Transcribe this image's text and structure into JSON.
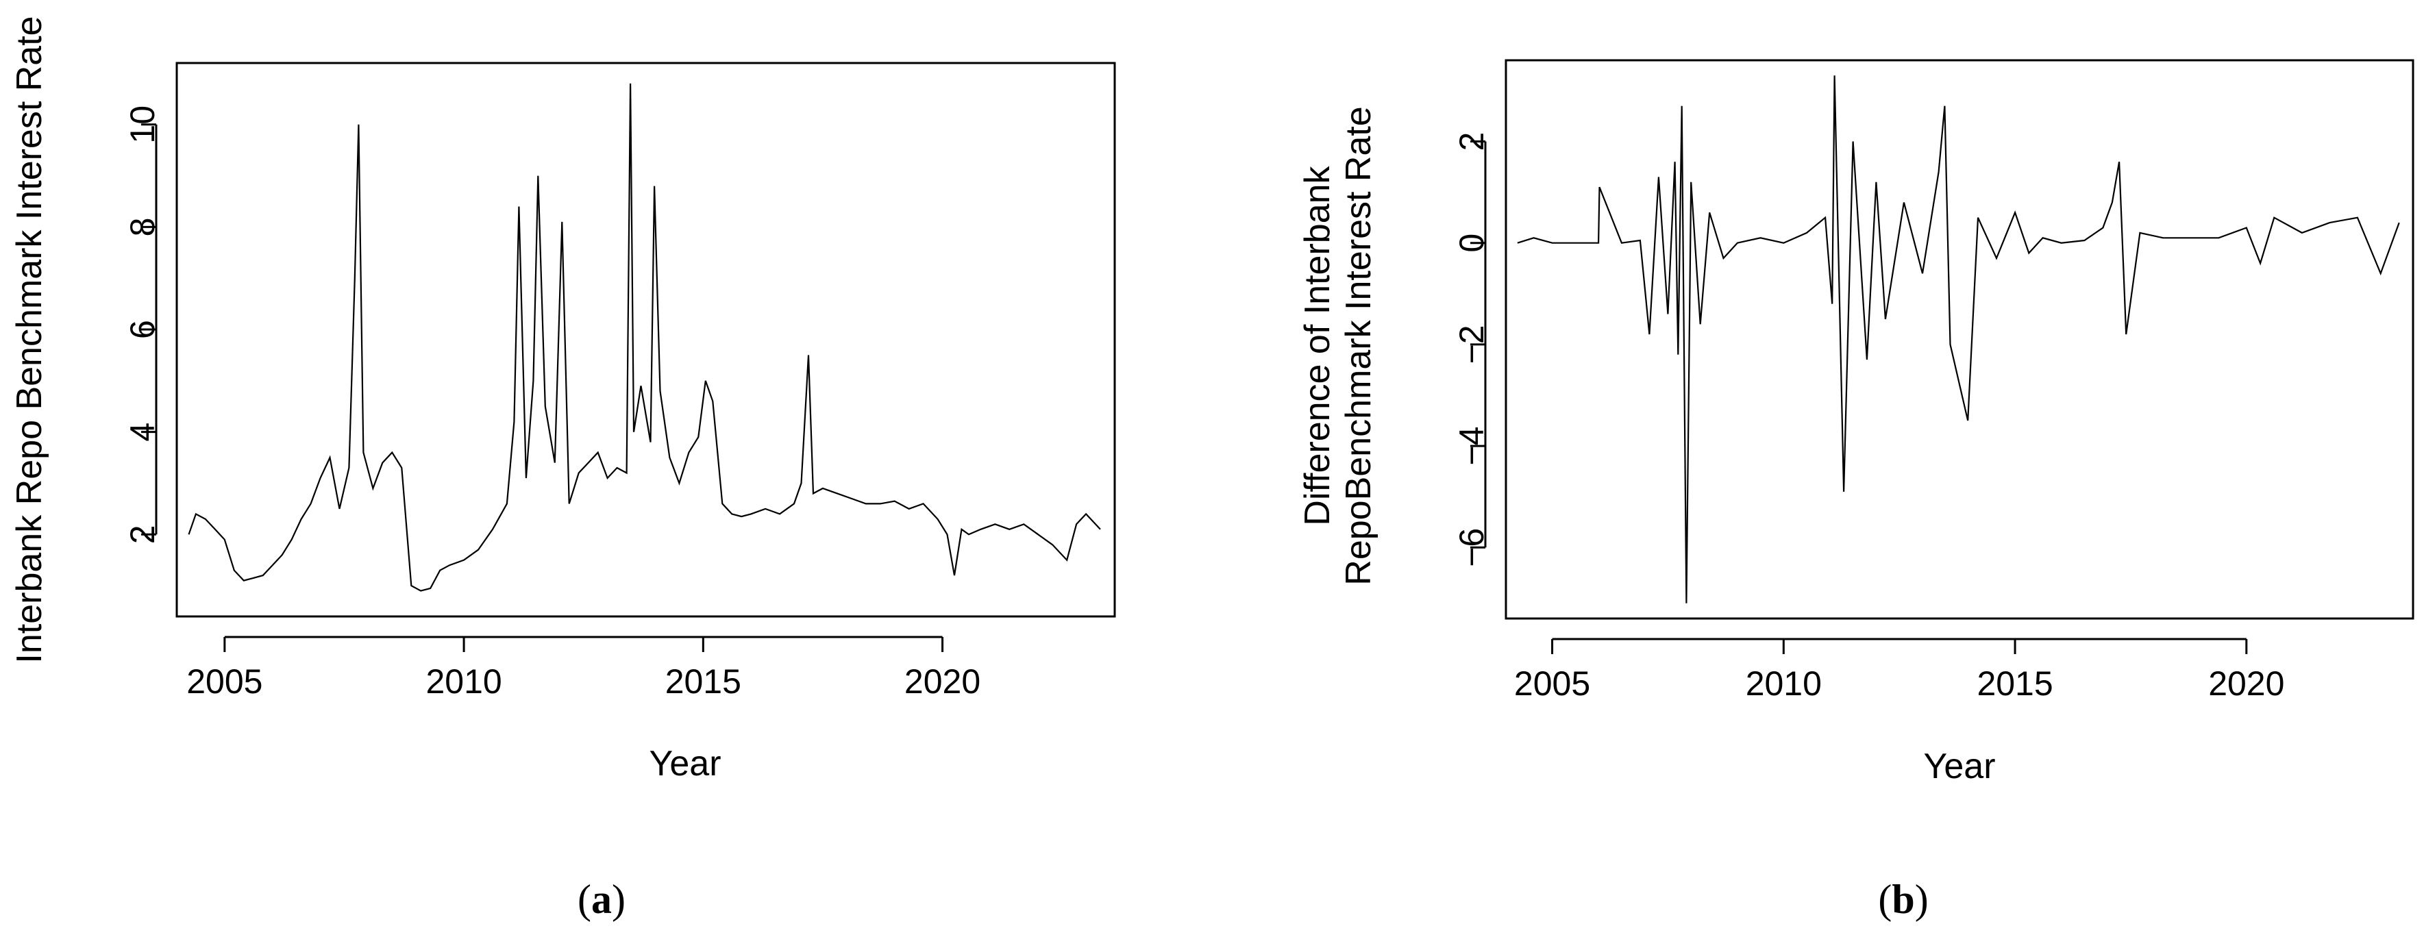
{
  "chart_data": [
    {
      "type": "line",
      "panel_label": "a",
      "xlabel": "Year",
      "ylabel": "Interbank Repo Benchmark Interest Rate",
      "xlim": [
        2004.0,
        2023.6
      ],
      "ylim": [
        0.4,
        11.2
      ],
      "x_ticks": [
        2005,
        2010,
        2015,
        2020
      ],
      "x_tick_labels": [
        "2005",
        "2010",
        "2015",
        "2020"
      ],
      "y_ticks": [
        2,
        4,
        6,
        8,
        10
      ],
      "y_tick_labels": [
        "2",
        "4",
        "6",
        "8",
        "10"
      ],
      "series": [
        {
          "x": [
            2004.25,
            2004.4,
            2004.6,
            2004.8,
            2005.0,
            2005.2,
            2005.4,
            2005.6,
            2005.8,
            2006.0,
            2006.2,
            2006.4,
            2006.6,
            2006.8,
            2007.0,
            2007.2,
            2007.4,
            2007.6,
            2007.72,
            2007.8,
            2007.9,
            2008.1,
            2008.3,
            2008.5,
            2008.7,
            2008.9,
            2009.1,
            2009.3,
            2009.5,
            2009.7,
            2010.0,
            2010.3,
            2010.6,
            2010.9,
            2011.05,
            2011.15,
            2011.3,
            2011.45,
            2011.55,
            2011.7,
            2011.9,
            2012.05,
            2012.2,
            2012.4,
            2012.6,
            2012.8,
            2013.0,
            2013.2,
            2013.4,
            2013.48,
            2013.55,
            2013.7,
            2013.9,
            2013.98,
            2014.1,
            2014.3,
            2014.5,
            2014.7,
            2014.9,
            2015.05,
            2015.2,
            2015.4,
            2015.6,
            2015.8,
            2016.0,
            2016.3,
            2016.6,
            2016.9,
            2017.05,
            2017.2,
            2017.3,
            2017.5,
            2017.8,
            2018.1,
            2018.4,
            2018.7,
            2019.0,
            2019.3,
            2019.6,
            2019.9,
            2020.1,
            2020.25,
            2020.4,
            2020.55,
            2020.8,
            2021.1,
            2021.4,
            2021.7,
            2022.0,
            2022.3,
            2022.6,
            2022.8,
            2023.0,
            2023.3
          ],
          "values": [
            2.0,
            2.4,
            2.3,
            2.1,
            1.9,
            1.3,
            1.1,
            1.15,
            1.2,
            1.4,
            1.6,
            1.9,
            2.3,
            2.6,
            3.1,
            3.5,
            2.5,
            3.3,
            7.0,
            10.0,
            3.6,
            2.9,
            3.4,
            3.6,
            3.3,
            1.0,
            0.9,
            0.95,
            1.3,
            1.4,
            1.5,
            1.7,
            2.1,
            2.6,
            4.2,
            8.4,
            3.1,
            5.0,
            9.0,
            4.5,
            3.4,
            8.1,
            2.6,
            3.2,
            3.4,
            3.6,
            3.1,
            3.3,
            3.2,
            10.8,
            4.0,
            4.9,
            3.8,
            8.8,
            4.8,
            3.5,
            3.0,
            3.6,
            3.9,
            5.0,
            4.6,
            2.6,
            2.4,
            2.35,
            2.4,
            2.5,
            2.4,
            2.6,
            3.0,
            5.5,
            2.8,
            2.9,
            2.8,
            2.7,
            2.6,
            2.6,
            2.65,
            2.5,
            2.6,
            2.3,
            2.0,
            1.2,
            2.1,
            2.0,
            2.1,
            2.2,
            2.1,
            2.2,
            2.0,
            1.8,
            1.5,
            2.2,
            2.4,
            2.1
          ]
        }
      ]
    },
    {
      "type": "line",
      "panel_label": "b",
      "xlabel": "Year",
      "ylabel_lines": [
        "Difference of Interbank",
        "RepoBenchmark Interest Rate"
      ],
      "xlim": [
        2004.0,
        2023.6
      ],
      "ylim": [
        -7.4,
        3.6
      ],
      "x_ticks": [
        2005,
        2010,
        2015,
        2020
      ],
      "x_tick_labels": [
        "2005",
        "2010",
        "2015",
        "2020"
      ],
      "y_ticks": [
        -6,
        -4,
        -2,
        0,
        2
      ],
      "y_tick_labels": [
        "−6",
        "−4",
        "−2",
        "0",
        "2"
      ],
      "series": [
        {
          "x": [
            2004.25,
            2004.6,
            2005.0,
            2005.5,
            2006.0,
            2006.02,
            2006.5,
            2006.9,
            2007.1,
            2007.3,
            2007.5,
            2007.65,
            2007.72,
            2007.8,
            2007.9,
            2008.0,
            2008.2,
            2008.4,
            2008.7,
            2009.0,
            2009.5,
            2010.0,
            2010.5,
            2010.9,
            2011.05,
            2011.1,
            2011.3,
            2011.5,
            2011.8,
            2012.0,
            2012.2,
            2012.6,
            2013.0,
            2013.35,
            2013.48,
            2013.6,
            2013.98,
            2014.2,
            2014.6,
            2015.0,
            2015.3,
            2015.6,
            2016.0,
            2016.5,
            2016.9,
            2017.1,
            2017.25,
            2017.4,
            2017.7,
            2018.2,
            2018.8,
            2019.4,
            2020.0,
            2020.3,
            2020.6,
            2021.2,
            2021.8,
            2022.4,
            2022.9,
            2023.3
          ],
          "values": [
            0.0,
            0.1,
            0.0,
            0.0,
            0.0,
            1.1,
            0.0,
            0.05,
            -1.8,
            1.3,
            -1.4,
            1.6,
            -2.2,
            2.7,
            -7.1,
            1.2,
            -1.6,
            0.6,
            -0.3,
            0.0,
            0.1,
            0.0,
            0.2,
            0.5,
            -1.2,
            3.3,
            -4.9,
            2.0,
            -2.3,
            1.2,
            -1.5,
            0.8,
            -0.6,
            1.4,
            2.7,
            -2.0,
            -3.5,
            0.5,
            -0.3,
            0.6,
            -0.2,
            0.1,
            0.0,
            0.05,
            0.3,
            0.8,
            1.6,
            -1.8,
            0.2,
            0.1,
            0.1,
            0.1,
            0.3,
            -0.4,
            0.5,
            0.2,
            0.4,
            0.5,
            -0.6,
            0.4
          ]
        }
      ]
    }
  ]
}
